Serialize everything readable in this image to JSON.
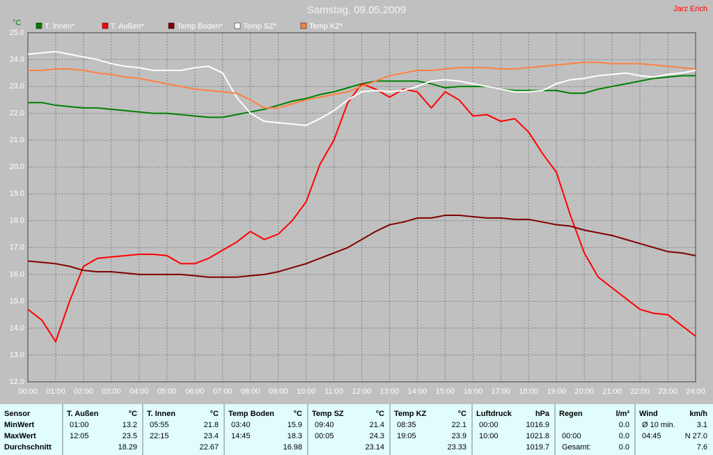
{
  "chart_data": {
    "type": "line",
    "title": "Samstag, 09.05.2009",
    "author": "Jarz Erich",
    "y_unit": "°C",
    "x": [
      0,
      0.5,
      1,
      1.5,
      2,
      2.5,
      3,
      3.5,
      4,
      4.5,
      5,
      5.5,
      6,
      6.5,
      7,
      7.5,
      8,
      8.5,
      9,
      9.5,
      10,
      10.5,
      11,
      11.5,
      12,
      12.5,
      13,
      13.5,
      14,
      14.5,
      15,
      15.5,
      16,
      16.5,
      17,
      17.5,
      18,
      18.5,
      19,
      19.5,
      20,
      20.5,
      21,
      21.5,
      22,
      22.5,
      23,
      23.5,
      24
    ],
    "series": [
      {
        "name": "T. Innen*",
        "color": "#008000",
        "values": [
          22.4,
          22.4,
          22.3,
          22.25,
          22.2,
          22.2,
          22.15,
          22.1,
          22.05,
          22.0,
          22.0,
          21.95,
          21.9,
          21.85,
          21.85,
          21.95,
          22.05,
          22.15,
          22.3,
          22.45,
          22.55,
          22.7,
          22.8,
          22.95,
          23.1,
          23.2,
          23.2,
          23.2,
          23.2,
          23.1,
          22.95,
          23.0,
          23.0,
          23.0,
          22.9,
          22.85,
          22.85,
          22.85,
          22.85,
          22.75,
          22.75,
          22.9,
          23.0,
          23.1,
          23.2,
          23.3,
          23.35,
          23.4,
          23.4
        ]
      },
      {
        "name": "T. Außen*",
        "color": "#ff0000",
        "values": [
          14.7,
          14.3,
          13.5,
          15.0,
          16.3,
          16.6,
          16.65,
          16.7,
          16.75,
          16.75,
          16.7,
          16.4,
          16.4,
          16.6,
          16.9,
          17.2,
          17.6,
          17.3,
          17.5,
          18.0,
          18.7,
          20.1,
          21.0,
          22.4,
          23.1,
          22.9,
          22.6,
          22.9,
          22.8,
          22.2,
          22.8,
          22.5,
          21.9,
          21.95,
          21.7,
          21.8,
          21.3,
          20.5,
          19.8,
          18.2,
          16.8,
          15.9,
          15.5,
          15.1,
          14.7,
          14.55,
          14.5,
          14.1,
          13.7
        ]
      },
      {
        "name": "Temp Boden*",
        "color": "#800000",
        "values": [
          16.5,
          16.45,
          16.4,
          16.3,
          16.15,
          16.1,
          16.1,
          16.05,
          16.0,
          16.0,
          16.0,
          16.0,
          15.95,
          15.9,
          15.9,
          15.9,
          15.95,
          16.0,
          16.1,
          16.25,
          16.4,
          16.6,
          16.8,
          17.0,
          17.3,
          17.6,
          17.85,
          17.95,
          18.1,
          18.1,
          18.2,
          18.2,
          18.15,
          18.1,
          18.1,
          18.05,
          18.05,
          17.95,
          17.85,
          17.8,
          17.65,
          17.55,
          17.45,
          17.3,
          17.15,
          17.0,
          16.85,
          16.8,
          16.7
        ]
      },
      {
        "name": "Temp SZ*",
        "color": "#ffffff",
        "values": [
          24.2,
          24.25,
          24.3,
          24.2,
          24.1,
          24.0,
          23.85,
          23.75,
          23.7,
          23.6,
          23.6,
          23.6,
          23.7,
          23.75,
          23.5,
          22.6,
          22.0,
          21.7,
          21.65,
          21.6,
          21.55,
          21.8,
          22.1,
          22.5,
          22.8,
          22.85,
          22.8,
          22.85,
          23.0,
          23.2,
          23.25,
          23.2,
          23.1,
          23.0,
          22.9,
          22.8,
          22.8,
          22.85,
          23.1,
          23.25,
          23.3,
          23.4,
          23.45,
          23.5,
          23.4,
          23.35,
          23.45,
          23.5,
          23.6
        ]
      },
      {
        "name": "Temp KZ*",
        "color": "#ff8040",
        "values": [
          23.6,
          23.6,
          23.65,
          23.65,
          23.6,
          23.5,
          23.45,
          23.35,
          23.3,
          23.2,
          23.1,
          23.0,
          22.9,
          22.85,
          22.8,
          22.75,
          22.5,
          22.2,
          22.2,
          22.35,
          22.5,
          22.6,
          22.7,
          22.8,
          23.0,
          23.2,
          23.4,
          23.5,
          23.6,
          23.6,
          23.65,
          23.7,
          23.7,
          23.7,
          23.65,
          23.65,
          23.7,
          23.75,
          23.8,
          23.85,
          23.9,
          23.9,
          23.85,
          23.85,
          23.85,
          23.8,
          23.75,
          23.7,
          23.65
        ]
      }
    ],
    "xlim": [
      0,
      24
    ],
    "xticks": [
      {
        "value": 0,
        "label": "00:00"
      },
      {
        "value": 1,
        "label": "01:00"
      },
      {
        "value": 2,
        "label": "02:00"
      },
      {
        "value": 3,
        "label": "03:00"
      },
      {
        "value": 4,
        "label": "04:00"
      },
      {
        "value": 5,
        "label": "05:00"
      },
      {
        "value": 6,
        "label": "06:00"
      },
      {
        "value": 7,
        "label": "07:00"
      },
      {
        "value": 8,
        "label": "08:00"
      },
      {
        "value": 9,
        "label": "09:00"
      },
      {
        "value": 10,
        "label": "10:00"
      },
      {
        "value": 11,
        "label": "11:00"
      },
      {
        "value": 12,
        "label": "12:00"
      },
      {
        "value": 13,
        "label": "13:00"
      },
      {
        "value": 14,
        "label": "14:00"
      },
      {
        "value": 15,
        "label": "15:00"
      },
      {
        "value": 16,
        "label": "16:00"
      },
      {
        "value": 17,
        "label": "17:00"
      },
      {
        "value": 18,
        "label": "18:00"
      },
      {
        "value": 19,
        "label": "19:00"
      },
      {
        "value": 20,
        "label": "20:00"
      },
      {
        "value": 21,
        "label": "21:00"
      },
      {
        "value": 22,
        "label": "22:00"
      },
      {
        "value": 23,
        "label": "23:00"
      },
      {
        "value": 24,
        "label": "24:00"
      }
    ],
    "ylim": [
      12,
      25
    ],
    "yticks": [
      {
        "value": 12,
        "label": "12.0"
      },
      {
        "value": 13,
        "label": "13.0"
      },
      {
        "value": 14,
        "label": "14.0"
      },
      {
        "value": 15,
        "label": "15.0"
      },
      {
        "value": 16,
        "label": "16.0"
      },
      {
        "value": 17,
        "label": "17.0"
      },
      {
        "value": 18,
        "label": "18.0"
      },
      {
        "value": 19,
        "label": "19.0"
      },
      {
        "value": 20,
        "label": "20.0"
      },
      {
        "value": 21,
        "label": "21.0"
      },
      {
        "value": 22,
        "label": "22.0"
      },
      {
        "value": 23,
        "label": "23.0"
      },
      {
        "value": 24,
        "label": "24.0"
      },
      {
        "value": 25,
        "label": "25.0"
      }
    ],
    "grid": true
  },
  "table": {
    "corner": "Sensor",
    "row_labels": [
      "MinWert",
      "MaxWert",
      "Durchschnitt"
    ],
    "columns": [
      {
        "name": "T. Außen",
        "unit": "°C",
        "rows": [
          [
            "01:00",
            "13.2"
          ],
          [
            "12:05",
            "23.5"
          ],
          [
            "18.29"
          ]
        ]
      },
      {
        "name": "T. Innen",
        "unit": "°C",
        "rows": [
          [
            "05:55",
            "21.8"
          ],
          [
            "22:15",
            "23.4"
          ],
          [
            "22.67"
          ]
        ]
      },
      {
        "name": "Temp Boden",
        "unit": "°C",
        "rows": [
          [
            "03:40",
            "15.9"
          ],
          [
            "14:45",
            "18.3"
          ],
          [
            "16.98"
          ]
        ]
      },
      {
        "name": "Temp SZ",
        "unit": "°C",
        "rows": [
          [
            "09:40",
            "21.4"
          ],
          [
            "00:05",
            "24.3"
          ],
          [
            "23.14"
          ]
        ]
      },
      {
        "name": "Temp KZ",
        "unit": "°C",
        "rows": [
          [
            "08:35",
            "22.1"
          ],
          [
            "19:05",
            "23.9"
          ],
          [
            "23.33"
          ]
        ]
      },
      {
        "name": "Luftdruck",
        "unit": "hPa",
        "rows": [
          [
            "00:00",
            "1016.9"
          ],
          [
            "10:00",
            "1021.8"
          ],
          [
            "1019.7"
          ]
        ]
      },
      {
        "name": "Regen",
        "unit": "l/m²",
        "rows": [
          [
            "0.0"
          ],
          [
            "00:00",
            "0.0"
          ],
          [
            "Gesamt:",
            "0.0"
          ]
        ]
      },
      {
        "name": "Wind",
        "unit": "km/h",
        "rows": [
          [
            "Ø 10 min.",
            "3.1"
          ],
          [
            "04:45",
            "N 27.0"
          ],
          [
            "7.6"
          ]
        ]
      }
    ]
  }
}
